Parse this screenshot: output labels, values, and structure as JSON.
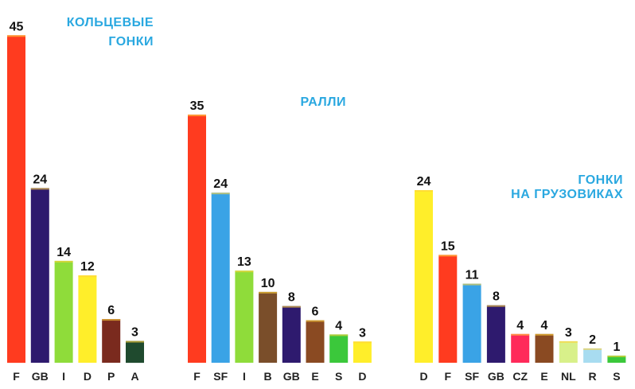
{
  "chart_data": [
    {
      "type": "bar",
      "title_lines": [
        "КОЛЬЦЕВЫЕ",
        "ГОНКИ"
      ],
      "categories": [
        "F",
        "GB",
        "I",
        "D",
        "P",
        "A"
      ],
      "values": [
        45,
        24,
        14,
        12,
        6,
        3
      ],
      "colors": [
        "#ff3b1f",
        "#2e1a6e",
        "#8fdc3a",
        "#ffee2a",
        "#7a2a1e",
        "#1f4a2e"
      ],
      "ylim": [
        0,
        45
      ],
      "grid": false,
      "legend": "none"
    },
    {
      "type": "bar",
      "title_lines": [
        "РАЛЛИ"
      ],
      "categories": [
        "F",
        "SF",
        "I",
        "B",
        "GB",
        "E",
        "S",
        "D"
      ],
      "values": [
        35,
        24,
        13,
        10,
        8,
        6,
        4,
        3
      ],
      "colors": [
        "#ff3b1f",
        "#3aa3e6",
        "#8fdc3a",
        "#7a4e2a",
        "#2e1a6e",
        "#8a4a22",
        "#3bc83b",
        "#ffee2a"
      ],
      "ylim": [
        0,
        35
      ],
      "grid": false,
      "legend": "none"
    },
    {
      "type": "bar",
      "title_lines": [
        "ГОНКИ",
        "НА ГРУЗОВИКАХ"
      ],
      "categories": [
        "D",
        "F",
        "SF",
        "GB",
        "CZ",
        "E",
        "NL",
        "R",
        "S"
      ],
      "values": [
        24,
        15,
        11,
        8,
        4,
        4,
        3,
        2,
        1
      ],
      "colors": [
        "#ffee2a",
        "#ff3b1f",
        "#3aa3e6",
        "#2e1a6e",
        "#ff2a5a",
        "#8a4a22",
        "#d8f08a",
        "#a8dcf0",
        "#3bc83b"
      ],
      "ylim": [
        0,
        24
      ],
      "grid": false,
      "legend": "none"
    }
  ],
  "colors": {
    "title": "#2aa8e0",
    "label": "#111111"
  }
}
